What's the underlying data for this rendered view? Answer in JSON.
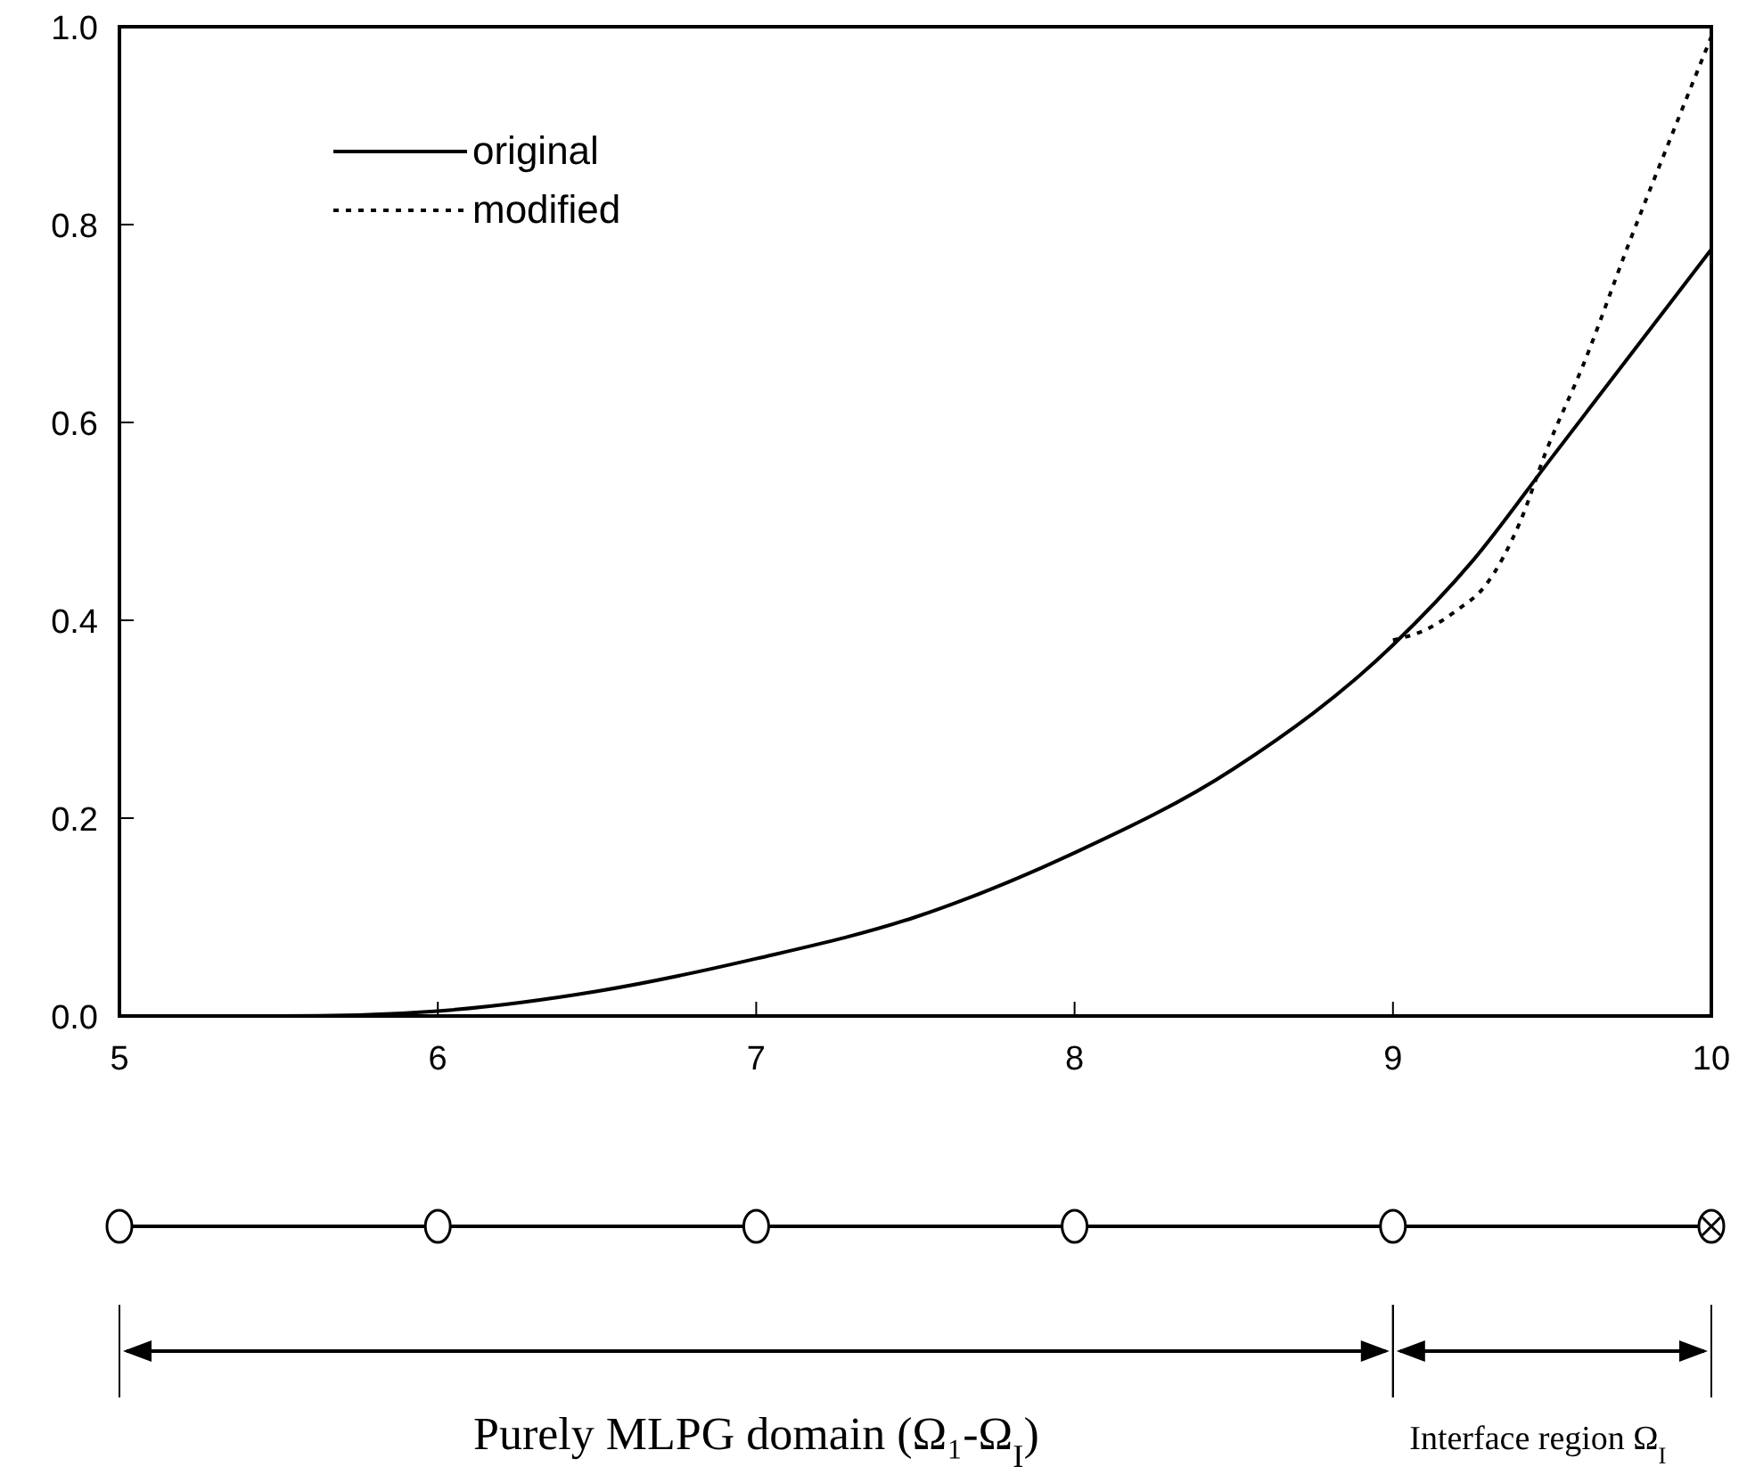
{
  "chart_data": {
    "type": "line",
    "x": [
      5,
      5.5,
      5.75,
      6,
      6.5,
      7,
      7.5,
      8,
      8.5,
      9,
      9.25,
      9.5,
      9.75,
      10
    ],
    "series": [
      {
        "name": "original",
        "color": "#000000",
        "line_style": "solid",
        "values": [
          0,
          0,
          0.001,
          0.005,
          0.025,
          0.058,
          0.1,
          0.165,
          0.25,
          0.375,
          0.46,
          0.565,
          0.67,
          0.775
        ]
      },
      {
        "name": "modified",
        "color": "#000000",
        "line_style": "dotted",
        "x": [
          9,
          9.1,
          9.2,
          9.29,
          9.4,
          9.48,
          9.6,
          9.74,
          9.9,
          10
        ],
        "values": [
          0.38,
          0.39,
          0.41,
          0.435,
          0.5,
          0.57,
          0.66,
          0.78,
          0.91,
          0.99
        ]
      }
    ],
    "xlim": [
      5,
      10
    ],
    "ylim": [
      0,
      1
    ],
    "xticks": [
      5,
      6,
      7,
      8,
      9,
      10
    ],
    "yticks": [
      {
        "value": 0,
        "label": "0.0"
      },
      0.2,
      0.4,
      0.6,
      0.8,
      {
        "value": 1,
        "label": "1.0"
      }
    ],
    "grid": false,
    "legend": "top left",
    "marker": "none",
    "annotations": [
      "Purely MLPG domain (Ω₁-Ω$_{I}$)",
      "Interface region Ω$_{I}$"
    ]
  }
}
